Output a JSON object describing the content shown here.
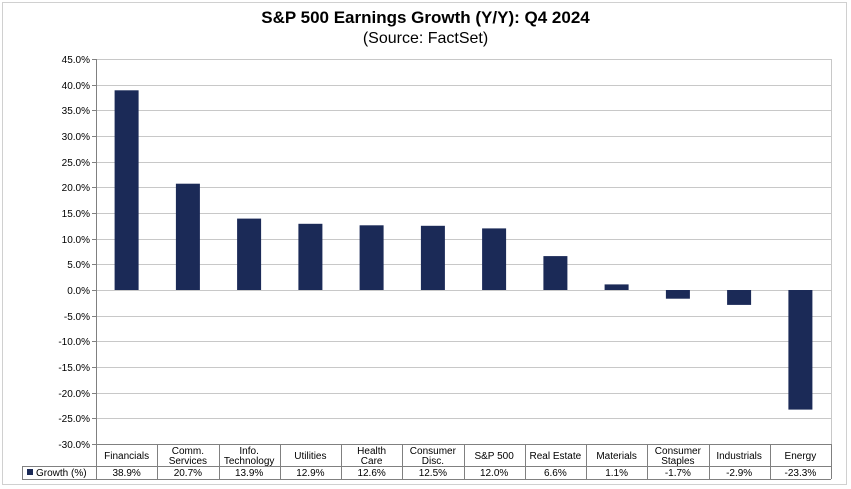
{
  "chart_data": {
    "type": "bar",
    "title": "S&P 500 Earnings Growth (Y/Y): Q4 2024",
    "subtitle": "(Source: FactSet)",
    "categories": [
      [
        "Financials"
      ],
      [
        "Comm.",
        "Services"
      ],
      [
        "Info.",
        "Technology"
      ],
      [
        "Utilities"
      ],
      [
        "Health",
        "Care"
      ],
      [
        "Consumer",
        "Disc."
      ],
      [
        "S&P 500"
      ],
      [
        "Real Estate"
      ],
      [
        "Materials"
      ],
      [
        "Consumer",
        "Staples"
      ],
      [
        "Industrials"
      ],
      [
        "Energy"
      ]
    ],
    "series": [
      {
        "name": "Growth (%)",
        "values": [
          38.9,
          20.7,
          13.9,
          12.9,
          12.6,
          12.5,
          12.0,
          6.6,
          1.1,
          -1.7,
          -2.9,
          -23.3
        ],
        "labels": [
          "38.9%",
          "20.7%",
          "13.9%",
          "12.9%",
          "12.6%",
          "12.5%",
          "12.0%",
          "6.6%",
          "1.1%",
          "-1.7%",
          "-2.9%",
          "-23.3%"
        ]
      }
    ],
    "ylim": [
      -30,
      45
    ],
    "yticks": [
      45,
      40,
      35,
      30,
      25,
      20,
      15,
      10,
      5,
      0,
      -5,
      -10,
      -15,
      -20,
      -25,
      -30
    ],
    "ytick_labels": [
      "45.0%",
      "40.0%",
      "35.0%",
      "30.0%",
      "25.0%",
      "20.0%",
      "15.0%",
      "10.0%",
      "5.0%",
      "0.0%",
      "-5.0%",
      "-10.0%",
      "-15.0%",
      "-20.0%",
      "-25.0%",
      "-30.0%"
    ],
    "grid": true,
    "legend": "data-table",
    "colors": {
      "bar": "#1b2a57",
      "grid": "#c8c8c8",
      "axis": "#808080"
    }
  }
}
